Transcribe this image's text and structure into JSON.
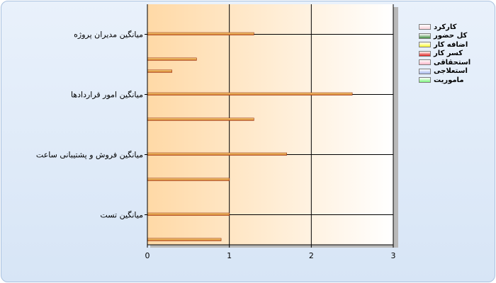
{
  "chart_data": {
    "type": "bar",
    "orientation": "horizontal",
    "title": "",
    "xlabel": "",
    "ylabel": "",
    "xlim": [
      0,
      3
    ],
    "x_ticks": [
      "0",
      "1",
      "2",
      "3"
    ],
    "grid": true,
    "legend_position": "top-right",
    "categories": [
      "میانگین مدیران پروژه",
      "میانگین امور قراردادها",
      "میانگین فروش و پشتیبانی ساعت",
      "میانگین تست"
    ],
    "series": [
      {
        "name": "کارکرد",
        "color": "#f9d0d8",
        "values": [
          1.3,
          2.5,
          1.7,
          1.0
        ]
      },
      {
        "name": "کل حضور",
        "color": "#3f8a3f",
        "values": [
          0,
          0,
          0,
          0
        ]
      },
      {
        "name": "اضافه کار",
        "color": "#ffff33",
        "values": [
          0,
          0,
          0,
          0
        ]
      },
      {
        "name": "کسر کار",
        "color": "#e02020",
        "values": [
          0.6,
          1.3,
          1.0,
          0.9
        ]
      },
      {
        "name": "استحقاقی",
        "color": "#ffb6c8",
        "values": [
          0.3,
          0,
          0,
          0
        ]
      },
      {
        "name": "استعلاجی",
        "color": "#a7b8ee",
        "values": [
          0,
          0,
          0,
          0
        ]
      },
      {
        "name": "ماموریت",
        "color": "#7ff57f",
        "values": [
          0,
          0,
          0,
          0
        ]
      }
    ]
  }
}
